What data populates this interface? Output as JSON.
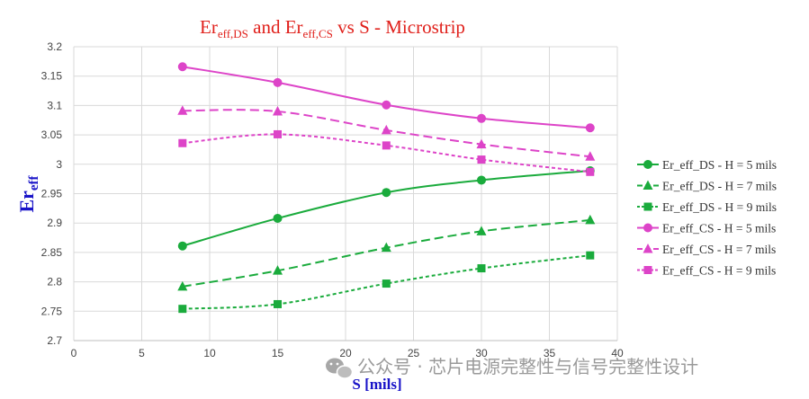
{
  "chart_data": {
    "type": "line",
    "title": {
      "prefix1": "Er",
      "sub1": "eff,DS",
      "mid": " and ",
      "prefix2": "Er",
      "sub2": "eff,CS",
      "suffix": " vs S - Microstrip"
    },
    "xlabel": "S [mils]",
    "ylabel": {
      "main": "Er",
      "sub": "eff"
    },
    "xlim": [
      0,
      40
    ],
    "ylim": [
      2.7,
      3.2
    ],
    "xticks": [
      "0",
      "5",
      "10",
      "15",
      "20",
      "25",
      "30",
      "35",
      "40"
    ],
    "yticks": [
      "2.7",
      "2.75",
      "2.8",
      "2.85",
      "2.9",
      "2.95",
      "3",
      "3.05",
      "3.1",
      "3.15",
      "3.2"
    ],
    "grid": true,
    "legend_position": "right",
    "x": [
      8,
      15,
      23,
      30,
      38
    ],
    "series": [
      {
        "name": "Er_eff_DS - H = 5 mils",
        "values": [
          2.861,
          2.908,
          2.952,
          2.973,
          2.989
        ],
        "color": "#1aab3c",
        "marker": "circle",
        "dash": "solid"
      },
      {
        "name": "Er_eff_DS - H = 7 mils",
        "values": [
          2.792,
          2.819,
          2.858,
          2.886,
          2.905
        ],
        "color": "#1aab3c",
        "marker": "triangle",
        "dash": "long-dash"
      },
      {
        "name": "Er_eff_DS - H = 9 mils",
        "values": [
          2.754,
          2.762,
          2.797,
          2.823,
          2.845
        ],
        "color": "#1aab3c",
        "marker": "square",
        "dash": "short-dash"
      },
      {
        "name": "Er_eff_CS - H = 5 mils",
        "values": [
          3.166,
          3.139,
          3.101,
          3.078,
          3.062
        ],
        "color": "#dd44c8",
        "marker": "circle",
        "dash": "solid"
      },
      {
        "name": "Er_eff_CS - H = 7 mils",
        "values": [
          3.091,
          3.09,
          3.058,
          3.034,
          3.013
        ],
        "color": "#dd44c8",
        "marker": "triangle",
        "dash": "long-dash"
      },
      {
        "name": "Er_eff_CS - H = 9 mils",
        "values": [
          3.036,
          3.051,
          3.032,
          3.008,
          2.987
        ],
        "color": "#dd44c8",
        "marker": "square",
        "dash": "short-dash"
      }
    ]
  },
  "watermark": "公众号 · 芯片电源完整性与信号完整性设计"
}
